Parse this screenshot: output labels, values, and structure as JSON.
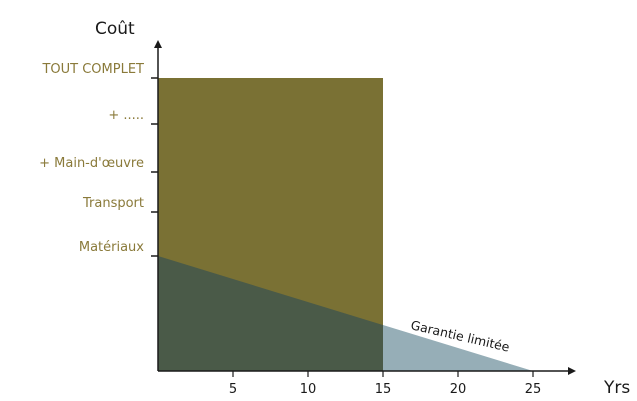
{
  "chart_data": {
    "type": "area",
    "ylabel": "Coût",
    "xlabel": "Yrs",
    "xlim": [
      0,
      28
    ],
    "x_ticks": [
      5,
      10,
      15,
      20,
      25
    ],
    "y_categories": [
      "Matériaux",
      "Transport",
      "+ Main-d'œuvre",
      "+ .....",
      "TOUT COMPLET"
    ],
    "series": [
      {
        "name": "TOUT COMPLET",
        "color": "#7a7134",
        "x": [
          0,
          15
        ],
        "level": "TOUT COMPLET"
      },
      {
        "name": "Garantie limitée",
        "color": "#96aeb7",
        "x": [
          0,
          25
        ],
        "level_start": "Matériaux",
        "level_end": 0
      }
    ],
    "annotation": "Garantie limitée",
    "colors": {
      "overlap": "#4a5a48",
      "label": "#8a7a3a",
      "axis": "#1a1a1a"
    }
  }
}
